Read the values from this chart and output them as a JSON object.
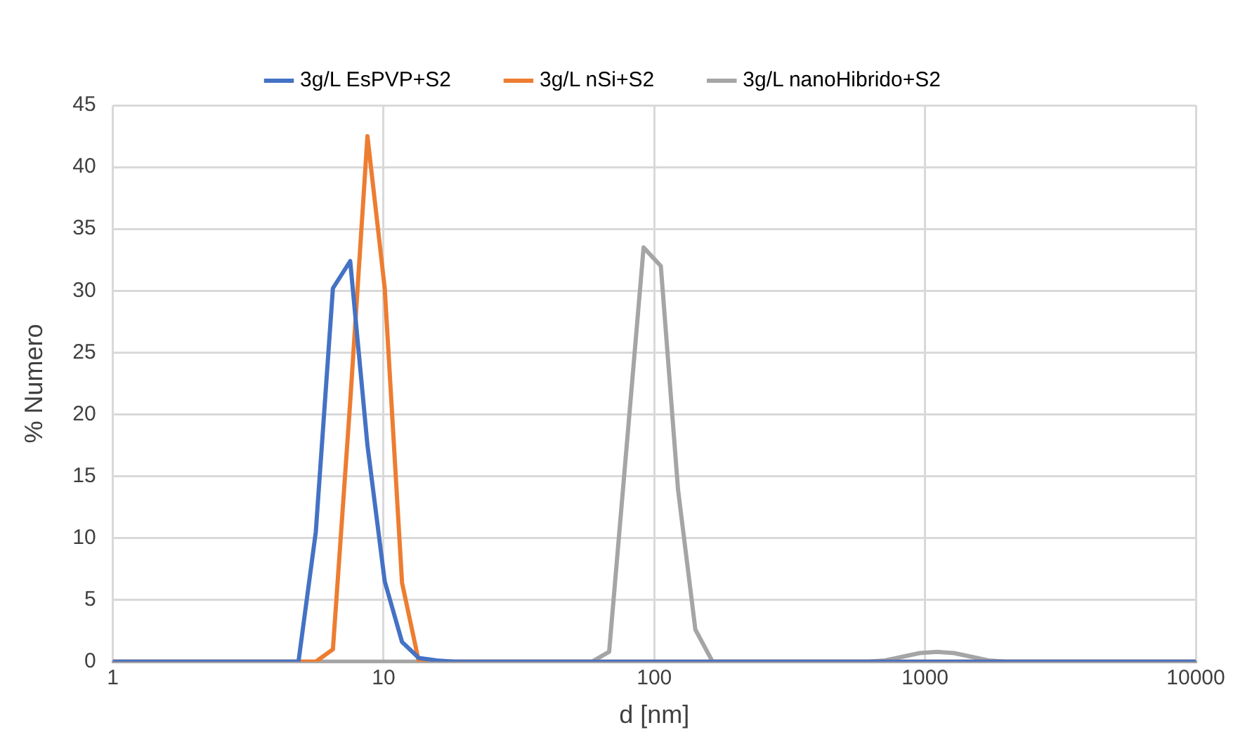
{
  "chart_data": {
    "type": "line",
    "xlabel": "d [nm]",
    "ylabel": "% Numero",
    "log": "x",
    "xlim": [
      1,
      10000
    ],
    "xticks": [
      1,
      10,
      100,
      1000,
      10000
    ],
    "ylim": [
      0,
      45
    ],
    "yticks": [
      0,
      5,
      10,
      15,
      20,
      25,
      30,
      35,
      40,
      45
    ],
    "grid": true,
    "legend": "top",
    "marker": "none",
    "line_style": "solid",
    "series": [
      {
        "name": "3g/L EsPVP+S2",
        "color": "#4472c4",
        "x": [
          1,
          4.85,
          5.62,
          6.5,
          7.53,
          8.72,
          10.1,
          11.7,
          13.5,
          15.7,
          18.2,
          10000
        ],
        "values": [
          0,
          0,
          10.5,
          30.2,
          32.4,
          17.5,
          6.5,
          1.6,
          0.3,
          0.1,
          0,
          0
        ]
      },
      {
        "name": "3g/L nSi+S2",
        "color": "#ed7d31",
        "x": [
          1,
          5.62,
          6.5,
          7.53,
          8.72,
          10.1,
          11.7,
          13.5,
          10000
        ],
        "values": [
          0,
          0,
          1,
          21,
          42.5,
          30.2,
          6.4,
          0,
          0
        ]
      },
      {
        "name": "3g/L nanoHibrido+S2",
        "color": "#a5a5a5",
        "x": [
          1,
          58.8,
          68.1,
          91.3,
          105.7,
          122.4,
          141.8,
          164.2,
          615,
          712,
          824,
          955,
          1106,
          1281,
          1483,
          1717,
          1989,
          10000
        ],
        "values": [
          0,
          0,
          0.8,
          33.5,
          32,
          13.9,
          2.6,
          0,
          0,
          0.1,
          0.4,
          0.7,
          0.8,
          0.7,
          0.4,
          0.1,
          0,
          0
        ]
      }
    ]
  }
}
